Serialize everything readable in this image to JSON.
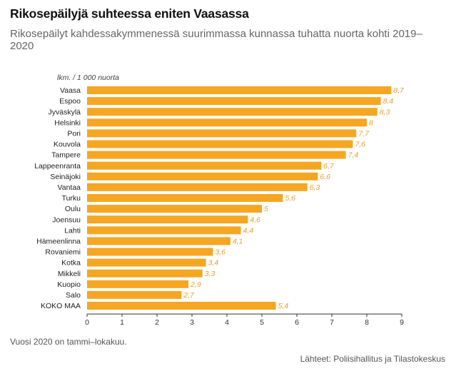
{
  "header": {
    "title": "Rikosepäilyjä suhteessa eniten Vaasassa",
    "subtitle": "Rikosepäilyt kahdessakymmenessä suurimmassa kunnassa tuhatta nuorta kohti 2019–2020"
  },
  "footer": {
    "note": "Vuosi 2020 on tammi–lokakuu.",
    "source": "Lähteet: Poliisihallitus ja Tilastokeskus"
  },
  "colors": {
    "bar": "#f5a623",
    "value_label": "#e8a030",
    "axis": "#333333"
  },
  "chart_data": {
    "type": "bar",
    "orientation": "horizontal",
    "title": "Rikosepäilyjä suhteessa eniten Vaasassa",
    "unit_label": "lkm. / 1 000 nuorta",
    "categories": [
      "Vaasa",
      "Espoo",
      "Jyväskylä",
      "Helsinki",
      "Pori",
      "Kouvola",
      "Tampere",
      "Lappeenranta",
      "Seinäjoki",
      "Vantaa",
      "Turku",
      "Oulu",
      "Joensuu",
      "Lahti",
      "Hämeenlinna",
      "Rovaniemi",
      "Kotka",
      "Mikkeli",
      "Kuopio",
      "Salo",
      "KOKO MAA"
    ],
    "values": [
      8.7,
      8.4,
      8.3,
      8,
      7.7,
      7.6,
      7.4,
      6.7,
      6.6,
      6.3,
      5.6,
      5,
      4.6,
      4.4,
      4.1,
      3.6,
      3.4,
      3.3,
      2.9,
      2.7,
      5.4
    ],
    "value_labels": [
      "8,7",
      "8,4",
      "8,3",
      "8",
      "7,7",
      "7,6",
      "7,4",
      "6,7",
      "6,6",
      "6,3",
      "5,6",
      "5",
      "4,6",
      "4,4",
      "4,1",
      "3,6",
      "3,4",
      "3,3",
      "2,9",
      "2,7",
      "5,4"
    ],
    "xlim": [
      0,
      9
    ],
    "xticks": [
      0,
      1,
      2,
      3,
      4,
      5,
      6,
      7,
      8,
      9
    ],
    "grid": false,
    "legend": "none"
  }
}
